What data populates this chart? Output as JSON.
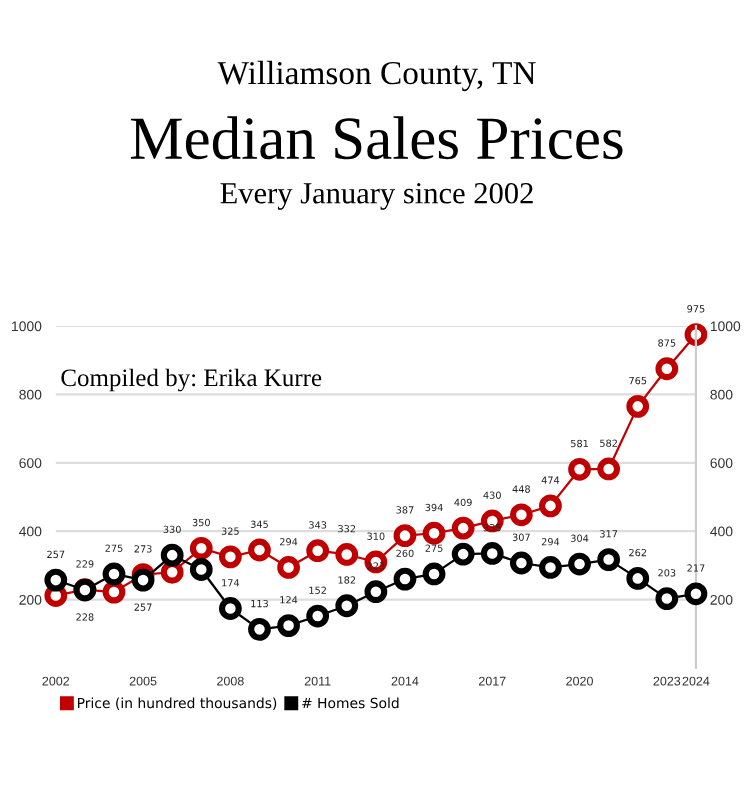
{
  "chart_data": {
    "type": "line",
    "title": "Median Sales Prices",
    "subtitle": "Williamson County, TN",
    "annotations": [
      "Every January since 2002",
      "Compiled by: Erika Kurre"
    ],
    "x": [
      2002,
      2003,
      2004,
      2005,
      2006,
      2007,
      2008,
      2009,
      2010,
      2011,
      2012,
      2013,
      2014,
      2015,
      2016,
      2017,
      2018,
      2019,
      2020,
      2021,
      2022,
      2023,
      2024
    ],
    "series": [
      {
        "name": "Price (in hundred thousands)",
        "color": "#c00000",
        "values": [
          212,
          229,
          222,
          273,
          280,
          350,
          325,
          345,
          294,
          343,
          332,
          310,
          387,
          394,
          409,
          430,
          448,
          474,
          581,
          582,
          765,
          875,
          975
        ],
        "value_labels": [
          null,
          "229",
          null,
          "273",
          null,
          "350",
          "325",
          "345",
          "294",
          "343",
          "332",
          "310",
          "387",
          "394",
          "409",
          "430",
          "448",
          "474",
          "581",
          "582",
          "765",
          "875",
          "975"
        ]
      },
      {
        "name": "# Homes Sold",
        "color": "#000000",
        "axis": "y2",
        "values": [
          257,
          228,
          275,
          257,
          330,
          288,
          174,
          113,
          124,
          152,
          182,
          223,
          260,
          275,
          333,
          335,
          307,
          294,
          304,
          317,
          262,
          203,
          217
        ],
        "value_labels": [
          "257",
          "228",
          "275",
          "257",
          "330",
          null,
          "174",
          "113",
          "124",
          "152",
          "182",
          "223",
          "260",
          "275",
          null,
          "335",
          "307",
          "294",
          "304",
          "317",
          "262",
          "203",
          "217"
        ]
      }
    ],
    "xlim": [
      2002,
      2024
    ],
    "xticks": [
      2002,
      2005,
      2008,
      2011,
      2014,
      2017,
      2020,
      2023,
      2024
    ],
    "ylim": [
      0,
      1000
    ],
    "yticks": [
      200,
      400,
      600,
      800,
      1000
    ],
    "y2lim": [
      0,
      1000
    ],
    "y2ticks": [
      200,
      400,
      600,
      800,
      1000
    ],
    "grid": "y",
    "legend": "bottom left",
    "marker": "circle",
    "line_style": "solid"
  }
}
